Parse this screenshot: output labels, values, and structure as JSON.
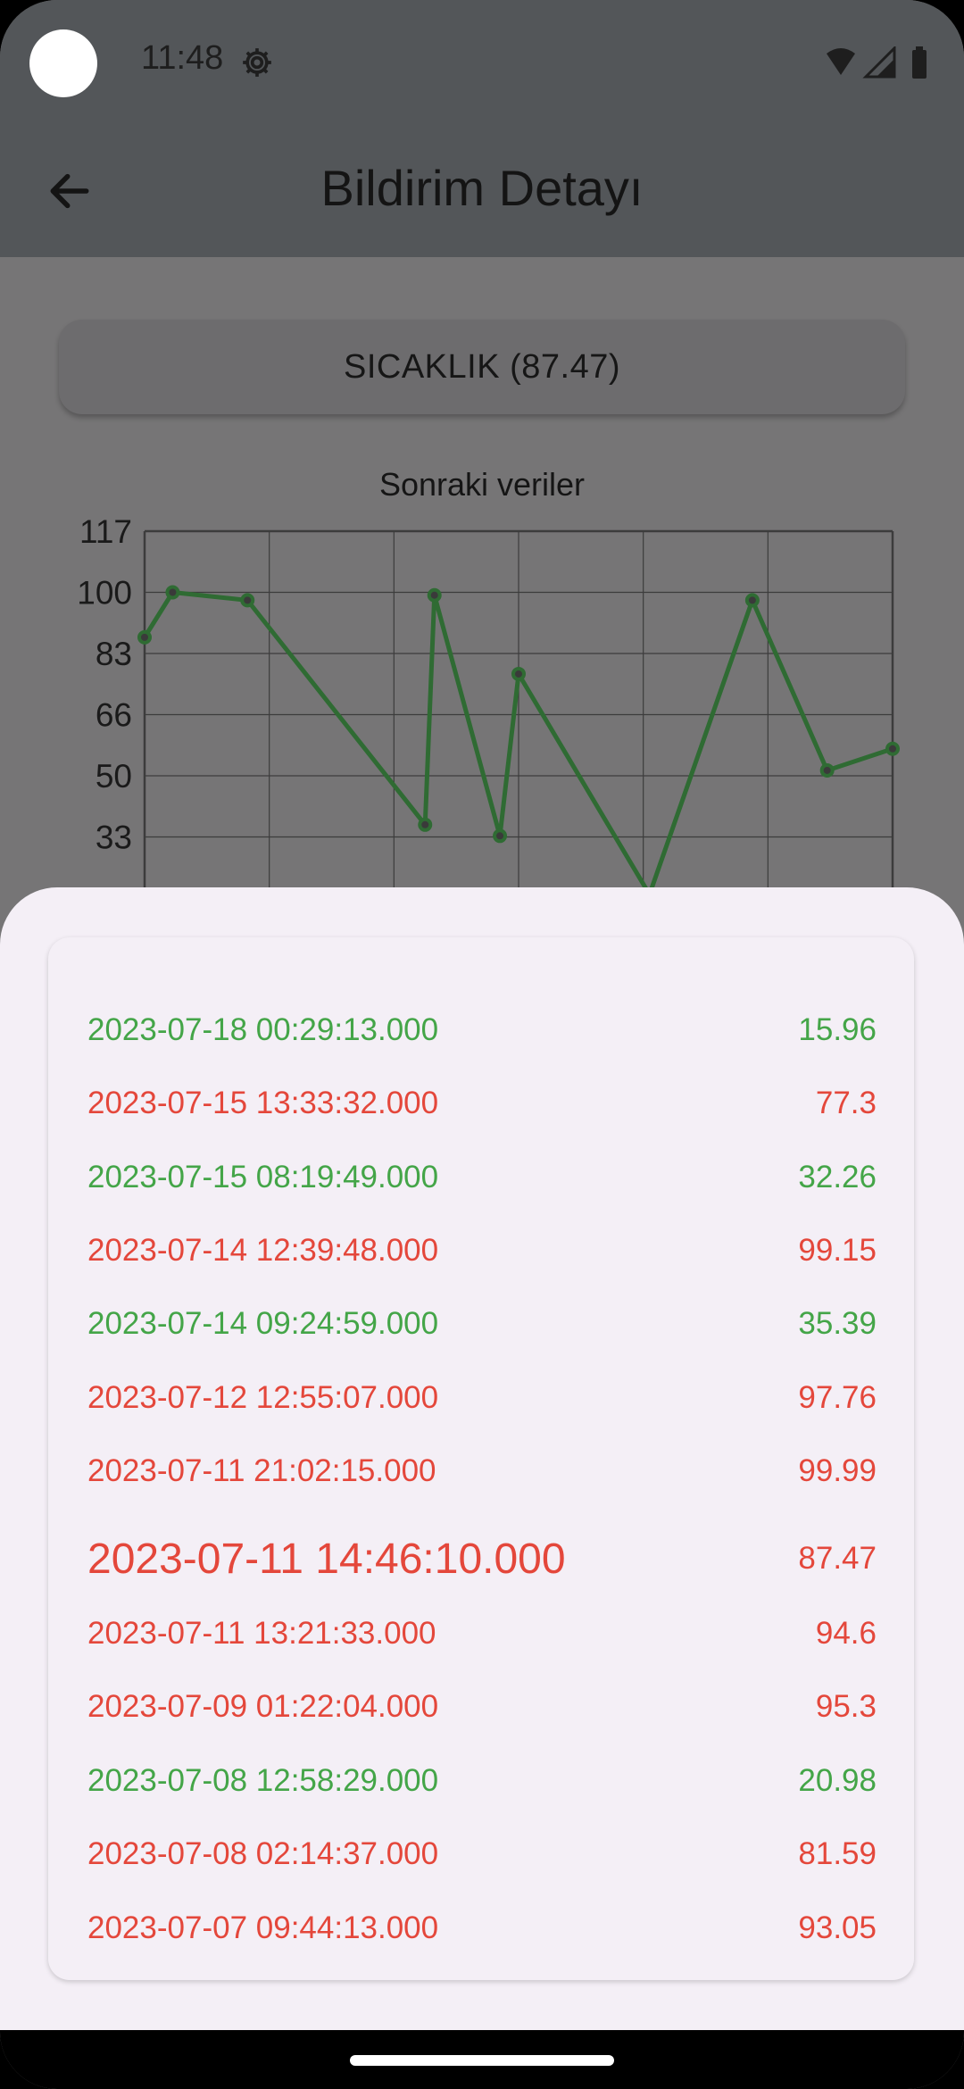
{
  "status_bar": {
    "time": "11:48",
    "icons": [
      "settings-gear-icon",
      "wifi-icon",
      "cellular-signal-icon",
      "battery-icon"
    ]
  },
  "app_bar": {
    "title": "Bildirim Detayı",
    "back_icon": "arrow-back-icon"
  },
  "sensor_button": {
    "label": "SICAKLIK (87.47)"
  },
  "chart_title": "Sonraki veriler",
  "chart_data": {
    "type": "line",
    "title": "Sonraki veriler",
    "y_ticks": [
      "117",
      "100",
      "83",
      "66",
      "50",
      "33"
    ],
    "ylim": [
      16,
      117
    ],
    "grid": true,
    "line_color": "#2f6b33",
    "points": [
      {
        "x": 0.0,
        "y": 87.5
      },
      {
        "x": 0.3,
        "y": 100.0
      },
      {
        "x": 1.1,
        "y": 97.8
      },
      {
        "x": 3.0,
        "y": 35.4
      },
      {
        "x": 3.1,
        "y": 99.2
      },
      {
        "x": 3.8,
        "y": 32.3
      },
      {
        "x": 4.0,
        "y": 77.3
      },
      {
        "x": 5.4,
        "y": 16.0
      },
      {
        "x": 6.5,
        "y": 97.8
      },
      {
        "x": 7.3,
        "y": 50.5
      },
      {
        "x": 8.0,
        "y": 56.5
      }
    ]
  },
  "readings": [
    {
      "timestamp": "2023-07-18 00:29:13.000",
      "value": "15.96",
      "status": "green"
    },
    {
      "timestamp": "2023-07-15 13:33:32.000",
      "value": "77.3",
      "status": "red"
    },
    {
      "timestamp": "2023-07-15 08:19:49.000",
      "value": "32.26",
      "status": "green"
    },
    {
      "timestamp": "2023-07-14 12:39:48.000",
      "value": "99.15",
      "status": "red"
    },
    {
      "timestamp": "2023-07-14 09:24:59.000",
      "value": "35.39",
      "status": "green"
    },
    {
      "timestamp": "2023-07-12 12:55:07.000",
      "value": "97.76",
      "status": "red"
    },
    {
      "timestamp": "2023-07-11 21:02:15.000",
      "value": "99.99",
      "status": "red"
    },
    {
      "timestamp": "2023-07-11 14:46:10.000",
      "value": "87.47",
      "status": "red",
      "highlighted": true
    },
    {
      "timestamp": "2023-07-11 13:21:33.000",
      "value": "94.6",
      "status": "red"
    },
    {
      "timestamp": "2023-07-09 01:22:04.000",
      "value": "95.3",
      "status": "red"
    },
    {
      "timestamp": "2023-07-08 12:58:29.000",
      "value": "20.98",
      "status": "green"
    },
    {
      "timestamp": "2023-07-08 02:14:37.000",
      "value": "81.59",
      "status": "red"
    },
    {
      "timestamp": "2023-07-07 09:44:13.000",
      "value": "93.05",
      "status": "red"
    }
  ],
  "colors": {
    "green": "#44a548",
    "red": "#e4473b",
    "sheet_background": "#f4eff6",
    "scrim": "#767576"
  }
}
